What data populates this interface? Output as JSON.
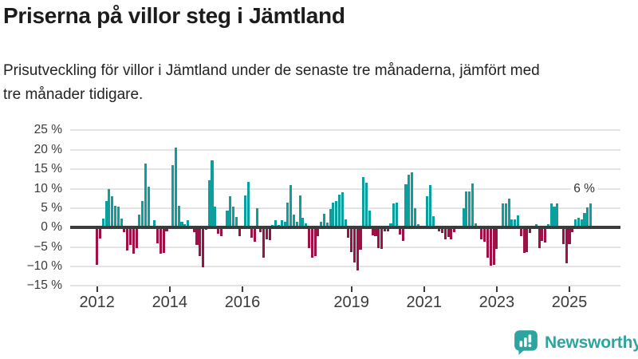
{
  "header": {
    "title": "Priserna på villor steg i Jämtland",
    "subtitle": "Prisutveckling för villor i Jämtland under de senaste tre månaderna, jämfört med tre månader tidigare."
  },
  "chart_data": {
    "type": "bar",
    "title": "Priserna på villor steg i Jämtland",
    "unit": "%",
    "x_start": "2012-01",
    "x_end": "2025-08",
    "ylim": [
      -15,
      25
    ],
    "grid": true,
    "y_ticks": [
      {
        "value": 25,
        "label": "25 %"
      },
      {
        "value": 20,
        "label": "20 %"
      },
      {
        "value": 15,
        "label": "15 %"
      },
      {
        "value": 10,
        "label": "10 %"
      },
      {
        "value": 5,
        "label": "5 %"
      },
      {
        "value": 0,
        "label": "0 %"
      },
      {
        "value": -5,
        "label": "−5 %"
      },
      {
        "value": -10,
        "label": "−10 %"
      },
      {
        "value": -15,
        "label": "−15 %"
      }
    ],
    "x_ticks": [
      {
        "year": 2012,
        "label": "2012"
      },
      {
        "year": 2014,
        "label": "2014"
      },
      {
        "year": 2016,
        "label": "2016"
      },
      {
        "year": 2019,
        "label": "2019"
      },
      {
        "year": 2021,
        "label": "2021"
      },
      {
        "year": 2023,
        "label": "2023"
      },
      {
        "year": 2025,
        "label": "2025"
      }
    ],
    "annotation": {
      "text": "6 %",
      "month": "2025-08",
      "value": 6.3
    },
    "colors": {
      "positive": "#0b9f9e",
      "negative": "#9d1147",
      "grid": "#e4e4e4",
      "zero_line": "#3b3b3b",
      "axis_text": "#3a3a3a"
    },
    "series": [
      {
        "year": 2012,
        "values": [
          -9.5,
          -2.8,
          2.4,
          6.9,
          10.0,
          8.0,
          5.6,
          5.3,
          2.4,
          -1.2,
          -5.9,
          -4.4
        ]
      },
      {
        "year": 2013,
        "values": [
          -6.8,
          -5.3,
          3.4,
          6.8,
          16.5,
          10.5,
          0.4,
          1.9,
          -4.0,
          -6.7,
          -6.5,
          -1.0
        ]
      },
      {
        "year": 2014,
        "values": [
          0.3,
          16.0,
          20.6,
          5.7,
          1.5,
          0.8,
          1.9,
          0.5,
          -1.2,
          -4.4,
          -7.4,
          -10.2
        ]
      },
      {
        "year": 2015,
        "values": [
          -0.5,
          12.2,
          17.4,
          5.4,
          -1.6,
          -2.2,
          0.2,
          4.3,
          8.1,
          5.4,
          2.8,
          -2.2
        ]
      },
      {
        "year": 2016,
        "values": [
          0.3,
          8.3,
          11.7,
          -2.6,
          -3.7,
          5.0,
          -1.2,
          -7.7,
          -3.1,
          -3.2,
          0.6,
          1.9
        ]
      },
      {
        "year": 2017,
        "values": [
          0.6,
          1.9,
          1.4,
          6.4,
          11.0,
          3.3,
          1.6,
          8.3,
          2.5,
          1.0,
          -5.3,
          -7.8
        ]
      },
      {
        "year": 2018,
        "values": [
          -7.3,
          -2.2,
          1.6,
          3.5,
          1.2,
          4.7,
          6.4,
          6.9,
          8.5,
          9.1,
          2.1,
          -2.7
        ]
      },
      {
        "year": 2019,
        "values": [
          -6.4,
          -8.9,
          -11.0,
          -5.7,
          13.0,
          11.5,
          4.4,
          -1.9,
          -2.1,
          -5.3,
          -5.5,
          -1.0
        ]
      },
      {
        "year": 2020,
        "values": [
          -1.0,
          1.0,
          6.3,
          6.5,
          -1.7,
          -3.4,
          11.1,
          13.6,
          14.2,
          4.9,
          0.9,
          0.4
        ]
      },
      {
        "year": 2021,
        "values": [
          0.3,
          8.1,
          11.0,
          2.9,
          0.4,
          -0.9,
          -1.4,
          -3.1,
          -2.5,
          -3.0,
          -1.2,
          0.3
        ]
      },
      {
        "year": 2022,
        "values": [
          0.4,
          5.0,
          9.2,
          9.3,
          11.3,
          1.0,
          0.3,
          -3.0,
          -3.6,
          -7.7,
          -9.7,
          -9.6
        ]
      },
      {
        "year": 2023,
        "values": [
          -5.4,
          0.2,
          6.3,
          6.3,
          7.5,
          2.1,
          2.1,
          3.1,
          -2.2,
          -6.5,
          -6.3,
          -1.3
        ]
      },
      {
        "year": 2024,
        "values": [
          0.2,
          0.9,
          -5.3,
          -3.5,
          -3.8,
          0.9,
          6.3,
          5.4,
          6.3,
          -0.2,
          -4.3,
          -9.1
        ]
      },
      {
        "year": 2025,
        "values": [
          -4.3,
          -1.1,
          2.1,
          2.6,
          2.1,
          3.7,
          5.1,
          6.3
        ]
      }
    ]
  },
  "footer": {
    "brand": "Newsworthy",
    "logo_icon": "bar-chart-speech-bubble"
  }
}
